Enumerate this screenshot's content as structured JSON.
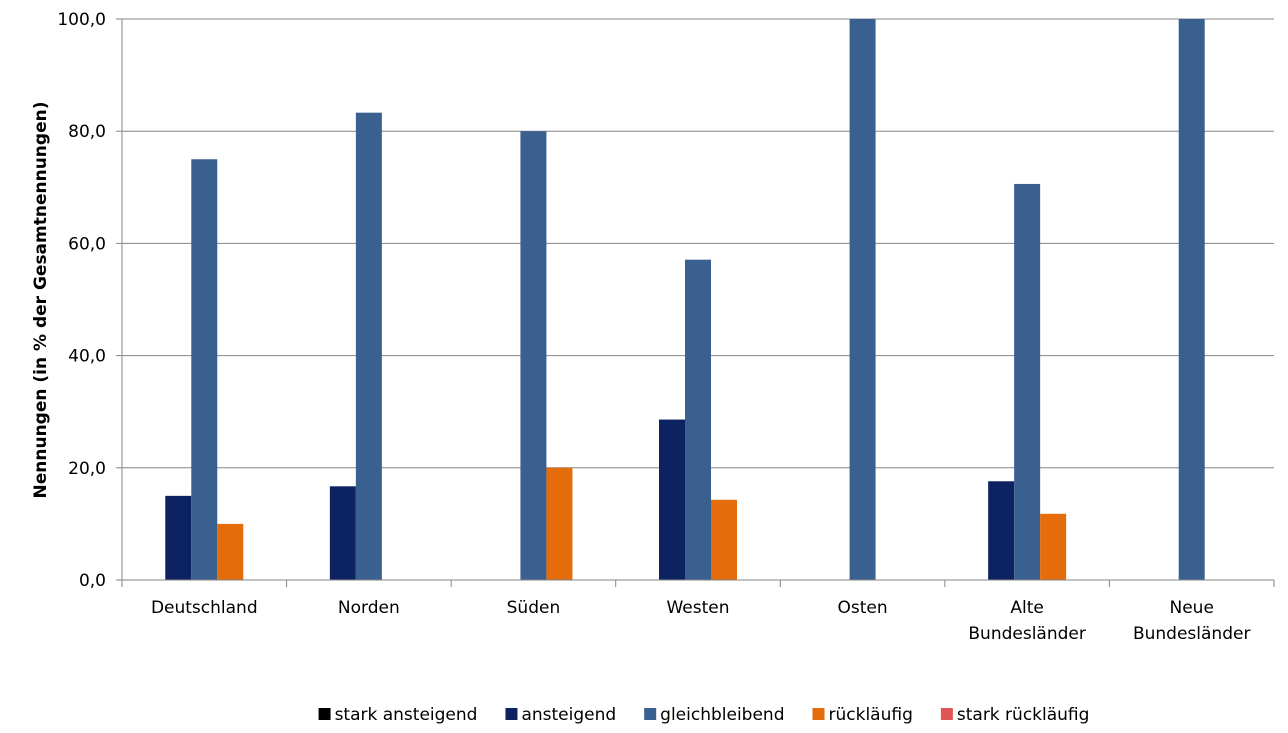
{
  "chart_data": {
    "type": "bar",
    "ylabel": "Nennungen  (in % der Gesamtnennungen)",
    "ylim": [
      0,
      100
    ],
    "yticks": [
      "0,0",
      "20,0",
      "40,0",
      "60,0",
      "80,0",
      "100,0"
    ],
    "ytick_values": [
      0,
      20,
      40,
      60,
      80,
      100
    ],
    "grid": true,
    "legend_position": "bottom",
    "categories": [
      [
        "Deutschland"
      ],
      [
        "Norden"
      ],
      [
        "Süden"
      ],
      [
        "Westen"
      ],
      [
        "Osten"
      ],
      [
        "Alte",
        "Bundesländer"
      ],
      [
        "Neue",
        "Bundesländer"
      ]
    ],
    "series": [
      {
        "name": "stark ansteigend",
        "color": "#000000",
        "values": [
          0,
          0,
          0,
          0,
          0,
          0,
          0
        ]
      },
      {
        "name": "ansteigend",
        "color": "#0d2260",
        "values": [
          15.0,
          16.7,
          0,
          28.6,
          0,
          17.6,
          0
        ]
      },
      {
        "name": "gleichbleibend",
        "color": "#3a6090",
        "values": [
          75.0,
          83.3,
          80.0,
          57.1,
          100.0,
          70.6,
          100.0
        ]
      },
      {
        "name": "rückläufig",
        "color": "#e46c0a",
        "values": [
          10.0,
          0,
          20.0,
          14.3,
          0,
          11.8,
          0
        ]
      },
      {
        "name": "stark rückläufig",
        "color": "#e05555",
        "values": [
          0,
          0,
          0,
          0,
          0,
          0,
          0
        ]
      }
    ]
  }
}
